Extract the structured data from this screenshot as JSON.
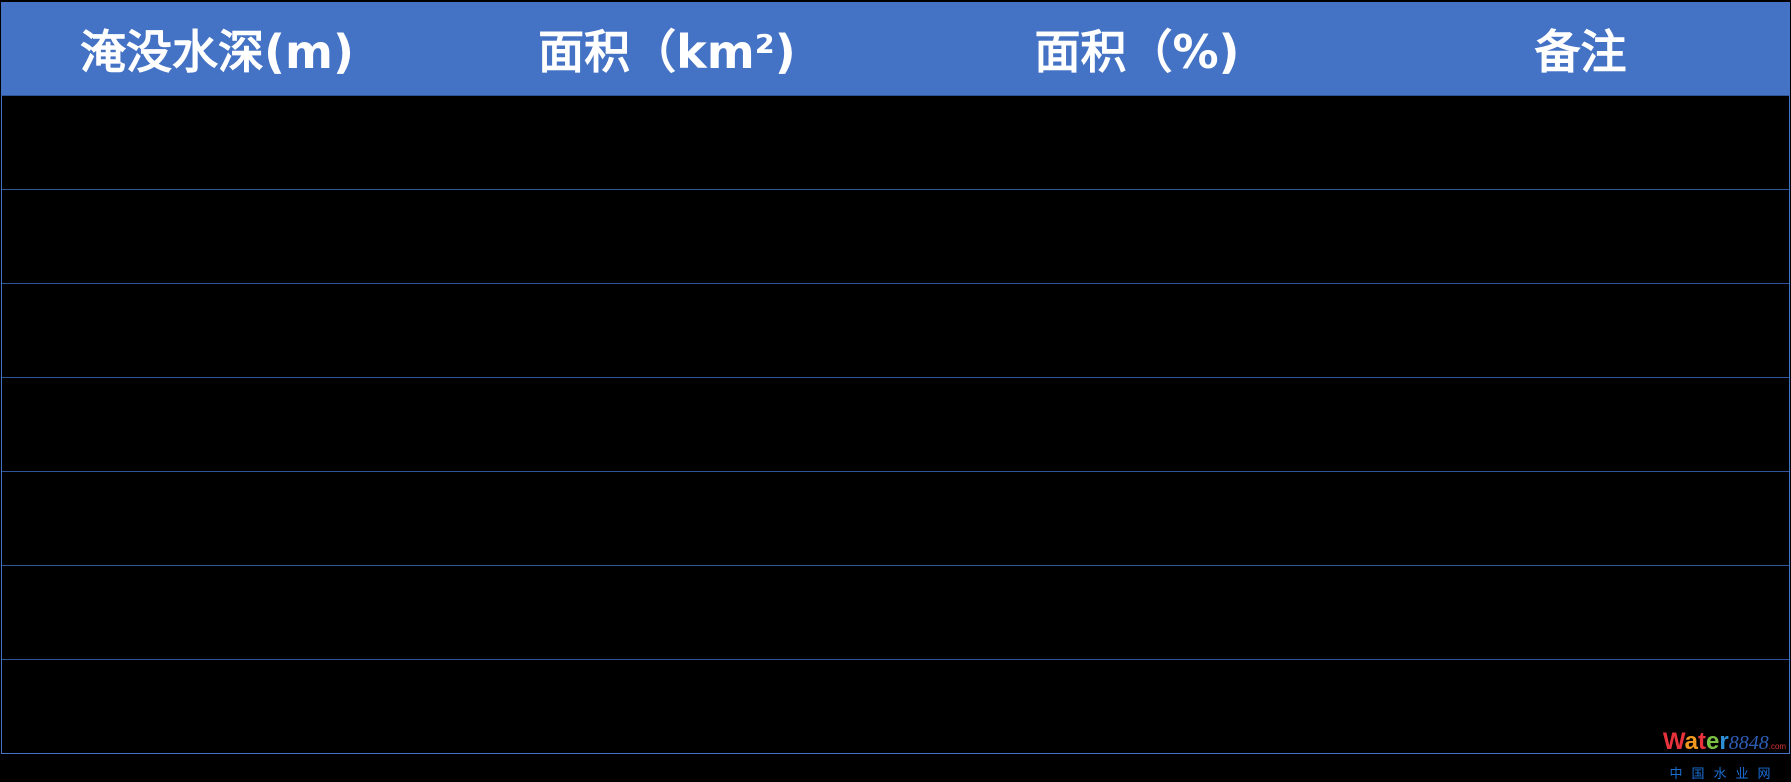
{
  "table": {
    "columns": [
      "淹没水深(m)",
      "面积（km²)",
      "面积（%)",
      "备注"
    ],
    "rows": [
      [
        "",
        "",
        "",
        ""
      ],
      [
        "",
        "",
        "",
        ""
      ],
      [
        "",
        "",
        "",
        ""
      ],
      [
        "",
        "",
        "",
        ""
      ],
      [
        "",
        "",
        "",
        ""
      ],
      [
        "",
        "",
        "",
        ""
      ],
      [
        "",
        "",
        "",
        ""
      ]
    ]
  },
  "watermark": {
    "logo": "Water8848.com",
    "text": "中国水业网"
  },
  "colors": {
    "header": "#4472c4",
    "grid": "#2f5597",
    "background": "#000000"
  }
}
